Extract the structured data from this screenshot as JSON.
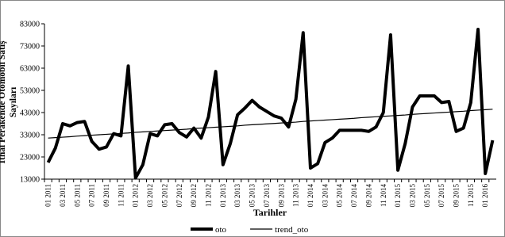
{
  "chart_data": {
    "type": "line",
    "y_label": "İthal Perakende Otomobil Satış Sayıları",
    "x_label": "Tarihler",
    "categories": [
      "01 2011",
      null,
      "03 2011",
      null,
      "05 2011",
      null,
      "07 2011",
      null,
      "09 2011",
      null,
      "11 2011",
      null,
      "01 2012",
      null,
      "03 2012",
      null,
      "05 2012",
      null,
      "07 2012",
      null,
      "09 2012",
      null,
      "11 2012",
      null,
      "01 2013",
      null,
      "03 2013",
      null,
      "05 2013",
      null,
      "07 2013",
      null,
      "09 2013",
      null,
      "11 2013",
      null,
      "01 2014",
      null,
      "03 2014",
      null,
      "05 2014",
      null,
      "07 2014",
      null,
      "09 2014",
      null,
      "11 2014",
      null,
      "01 2015",
      null,
      "03 2015",
      null,
      "05 2015",
      null,
      "07 2015",
      null,
      "09 2015",
      null,
      "11 2015",
      null,
      "01 2016",
      null
    ],
    "series": [
      {
        "name": "oto",
        "color": "#000000",
        "width": 4,
        "values": [
          20500,
          27000,
          38000,
          37000,
          38500,
          39000,
          30000,
          26500,
          27500,
          33500,
          32500,
          64000,
          13500,
          19500,
          33500,
          32500,
          37500,
          38000,
          34000,
          32000,
          36000,
          31500,
          41000,
          61500,
          19500,
          29000,
          42000,
          45000,
          48500,
          45500,
          43500,
          41500,
          40500,
          36500,
          49000,
          79000,
          18000,
          20000,
          29500,
          31500,
          35000,
          35000,
          35000,
          35000,
          34500,
          36500,
          43000,
          78000,
          17000,
          29000,
          45500,
          50500,
          50500,
          50500,
          47500,
          48000,
          34500,
          36000,
          47500,
          80500,
          15500,
          30500
        ]
      },
      {
        "name": "trend_oto",
        "color": "#000000",
        "width": 1.2,
        "values": [
          31500,
          31700,
          31900,
          32100,
          32400,
          32600,
          32800,
          33000,
          33200,
          33400,
          33600,
          33800,
          34100,
          34300,
          34500,
          34700,
          34900,
          35100,
          35300,
          35500,
          35800,
          36000,
          36200,
          36400,
          36600,
          36800,
          37000,
          37300,
          37500,
          37700,
          37900,
          38100,
          38300,
          38500,
          38700,
          39000,
          39200,
          39400,
          39600,
          39800,
          40000,
          40200,
          40400,
          40700,
          40900,
          41100,
          41300,
          41500,
          41700,
          41900,
          42200,
          42400,
          42600,
          42800,
          43000,
          43200,
          43400,
          43600,
          43900,
          44100,
          44300,
          44500
        ]
      }
    ],
    "ylim": [
      13000,
      83000
    ],
    "yticks": [
      13000,
      23000,
      33000,
      43000,
      53000,
      63000,
      73000,
      83000
    ],
    "grid": false,
    "legend": "bottom"
  }
}
